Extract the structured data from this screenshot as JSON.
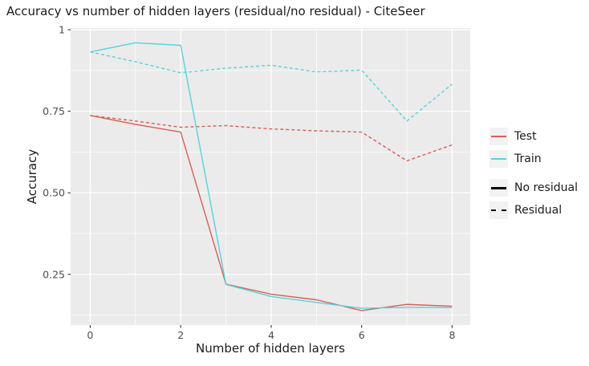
{
  "title": "Accuracy vs number of hidden layers (residual/no residual) - CiteSeer",
  "chart_data": {
    "type": "line",
    "title": "Accuracy vs number of hidden layers (residual/no residual) - CiteSeer",
    "xlabel": "Number of hidden layers",
    "ylabel": "Accuracy",
    "x": [
      0,
      1,
      2,
      3,
      4,
      5,
      6,
      7,
      8
    ],
    "xlim": [
      -0.433,
      8.4
    ],
    "ylim": [
      0.0945,
      1.005
    ],
    "xticks": {
      "major": [
        0,
        2,
        4,
        6,
        8
      ],
      "minor": [
        1,
        3,
        5,
        7
      ],
      "labels": [
        "0",
        "2",
        "4",
        "6",
        "8"
      ]
    },
    "yticks": {
      "major": [
        0.25,
        0.5,
        0.75,
        1.0
      ],
      "minor": [
        0.125,
        0.375,
        0.625,
        0.875
      ],
      "labels": [
        "0.25",
        "0.50",
        "0.75",
        "1"
      ]
    },
    "grid": true,
    "legend_position": "right",
    "series": [
      {
        "name": "Test / Residual",
        "group": "Test",
        "linetype": "Residual",
        "color": "#D95F57",
        "dash": true,
        "values": [
          0.737,
          0.72,
          0.701,
          0.706,
          0.696,
          0.69,
          0.686,
          0.598,
          0.647
        ]
      },
      {
        "name": "Train / Residual",
        "group": "Train",
        "linetype": "Residual",
        "color": "#57D3DB",
        "dash": true,
        "values": [
          0.932,
          0.902,
          0.868,
          0.882,
          0.891,
          0.871,
          0.876,
          0.72,
          0.833
        ]
      },
      {
        "name": "Test / No residual",
        "group": "Test",
        "linetype": "No residual",
        "color": "#D95F57",
        "dash": false,
        "values": [
          0.737,
          0.71,
          0.686,
          0.22,
          0.189,
          0.172,
          0.139,
          0.158,
          0.152
        ]
      },
      {
        "name": "Train / No residual",
        "group": "Train",
        "linetype": "No residual",
        "color": "#57D3DB",
        "dash": false,
        "values": [
          0.932,
          0.96,
          0.952,
          0.219,
          0.182,
          0.164,
          0.146,
          0.149,
          0.148
        ]
      }
    ]
  },
  "legend": {
    "color_items": [
      {
        "label": "Test",
        "color": "#D95F57"
      },
      {
        "label": "Train",
        "color": "#57D3DB"
      }
    ],
    "linetype_items": [
      {
        "label": "No residual",
        "dash": "solid"
      },
      {
        "label": "Residual",
        "dash": "dashed"
      }
    ]
  },
  "colors": {
    "panel_bg": "#EBEBEB",
    "grid": "#FFFFFF",
    "tick_text": "#4D4D4D",
    "axis_text": "#1A1A1A",
    "tick_mark": "#333333",
    "legend_key_bg": "#F2F2F2",
    "test": "#D95F57",
    "train": "#57D3DB"
  }
}
